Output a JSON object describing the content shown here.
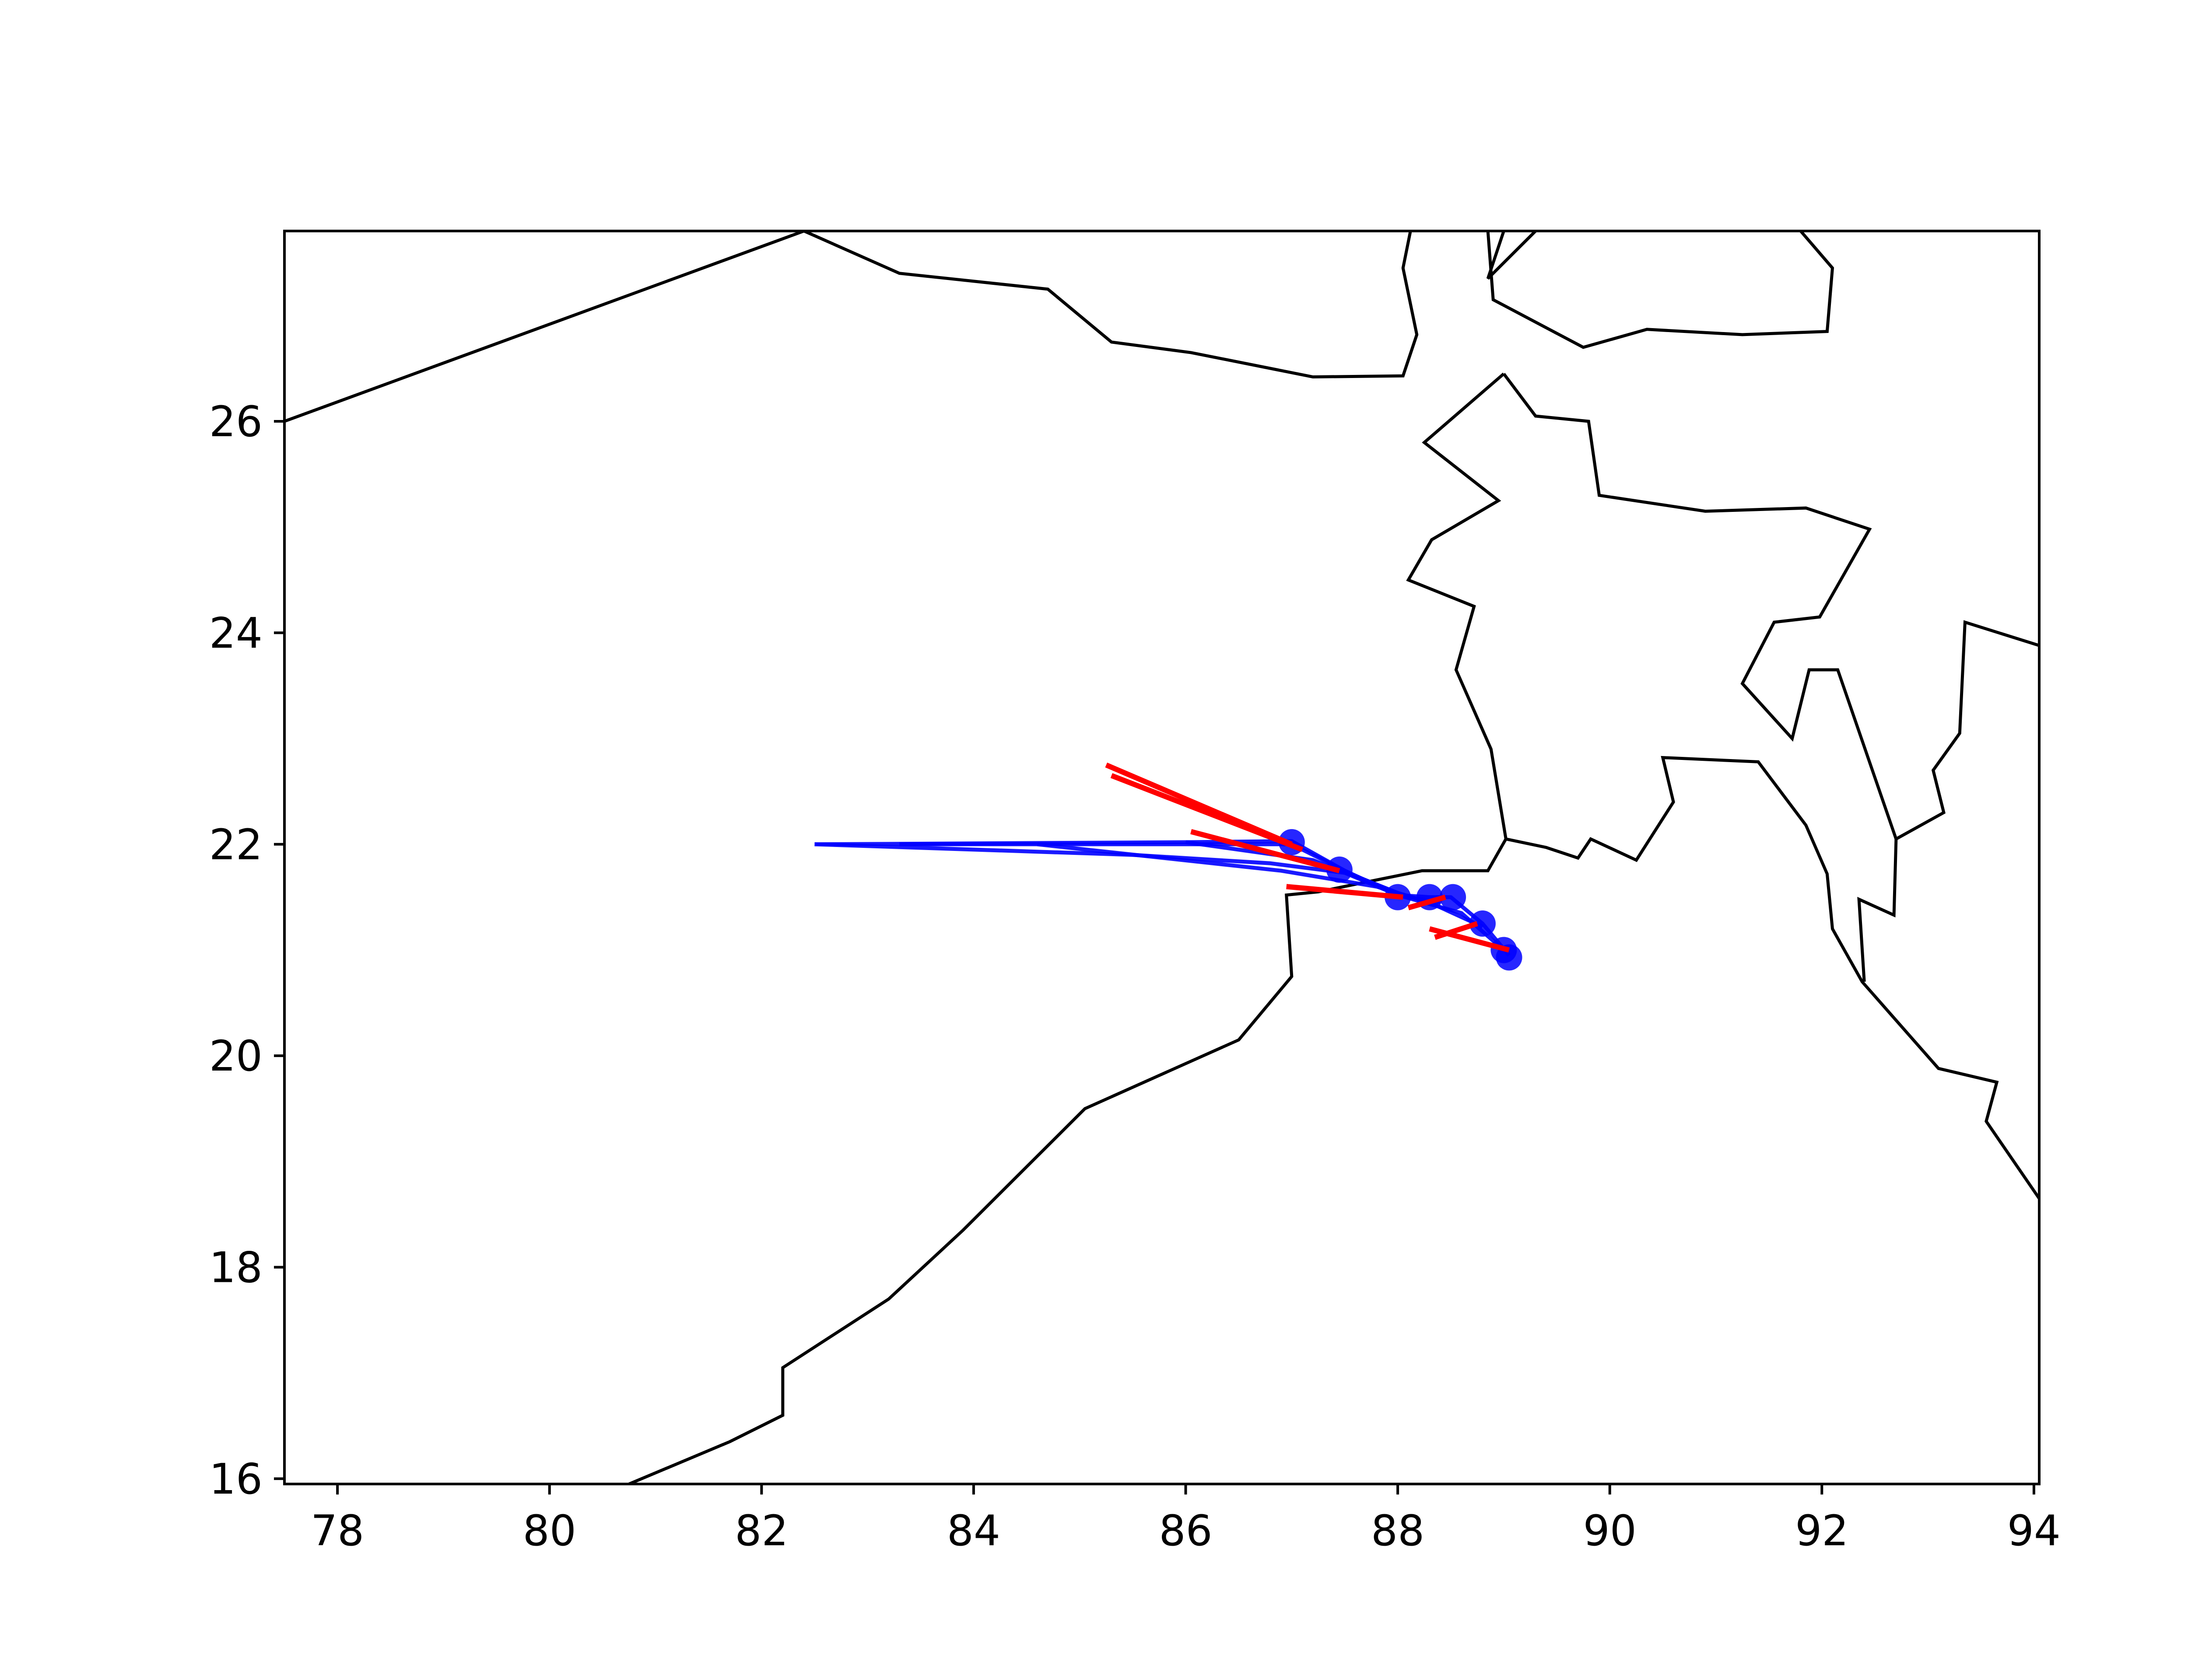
{
  "chart_data": {
    "type": "line",
    "title": "",
    "xlabel": "",
    "ylabel": "",
    "xlim": [
      77.5,
      94.05
    ],
    "ylim": [
      15.95,
      27.8
    ],
    "x_ticks": [
      "78",
      "80",
      "82",
      "84",
      "86",
      "88",
      "90",
      "92",
      "94"
    ],
    "y_ticks": [
      "16",
      "18",
      "20",
      "22",
      "24",
      "26"
    ],
    "grid": false,
    "coastline": [
      [
        [
          77.5,
          26.0
        ],
        [
          82.4,
          27.8
        ],
        [
          83.3,
          27.4
        ],
        [
          84.7,
          27.25
        ],
        [
          85.3,
          26.75
        ],
        [
          86.05,
          26.65
        ],
        [
          87.2,
          26.42
        ],
        [
          88.05,
          26.43
        ],
        [
          88.18,
          26.82
        ],
        [
          88.05,
          27.45
        ],
        [
          88.12,
          27.8
        ]
      ],
      [
        [
          89.0,
          27.8
        ],
        [
          88.85,
          27.35
        ],
        [
          89.3,
          27.8
        ]
      ],
      [
        [
          88.85,
          27.8
        ],
        [
          88.9,
          27.15
        ],
        [
          89.75,
          26.7
        ],
        [
          90.35,
          26.87
        ],
        [
          91.25,
          26.82
        ],
        [
          92.05,
          26.85
        ],
        [
          92.1,
          27.45
        ],
        [
          91.8,
          27.8
        ]
      ],
      [
        [
          89.0,
          26.45
        ],
        [
          88.25,
          25.8
        ],
        [
          88.95,
          25.25
        ],
        [
          88.32,
          24.88
        ],
        [
          88.1,
          24.5
        ],
        [
          88.72,
          24.25
        ],
        [
          88.55,
          23.65
        ],
        [
          88.88,
          22.9
        ],
        [
          89.02,
          22.05
        ],
        [
          89.4,
          21.97
        ],
        [
          89.7,
          21.87
        ],
        [
          89.82,
          22.05
        ],
        [
          90.25,
          21.85
        ],
        [
          90.6,
          22.4
        ],
        [
          90.5,
          22.82
        ],
        [
          91.4,
          22.78
        ],
        [
          91.85,
          22.18
        ],
        [
          92.05,
          21.72
        ],
        [
          92.1,
          21.2
        ],
        [
          92.38,
          20.7
        ],
        [
          93.1,
          19.88
        ],
        [
          93.65,
          19.75
        ],
        [
          93.55,
          19.38
        ],
        [
          94.05,
          18.65
        ]
      ],
      [
        [
          94.05,
          23.88
        ],
        [
          93.35,
          24.1
        ],
        [
          93.3,
          23.05
        ],
        [
          93.05,
          22.7
        ],
        [
          93.15,
          22.3
        ],
        [
          92.7,
          22.05
        ],
        [
          92.68,
          21.33
        ],
        [
          92.35,
          21.48
        ],
        [
          92.4,
          20.7
        ]
      ],
      [
        [
          92.7,
          22.05
        ],
        [
          92.15,
          23.65
        ],
        [
          91.88,
          23.65
        ],
        [
          91.72,
          23.0
        ],
        [
          91.25,
          23.52
        ],
        [
          91.55,
          24.1
        ],
        [
          91.98,
          24.15
        ],
        [
          92.45,
          24.98
        ],
        [
          91.85,
          25.18
        ],
        [
          90.9,
          25.15
        ],
        [
          89.9,
          25.3
        ],
        [
          89.8,
          26.0
        ],
        [
          89.3,
          26.05
        ],
        [
          89.0,
          26.45
        ]
      ],
      [
        [
          89.02,
          22.05
        ],
        [
          88.85,
          21.75
        ],
        [
          88.23,
          21.75
        ],
        [
          87.25,
          21.55
        ],
        [
          86.95,
          21.52
        ],
        [
          87.0,
          20.75
        ],
        [
          86.5,
          20.15
        ],
        [
          85.05,
          19.5
        ],
        [
          83.9,
          18.35
        ],
        [
          83.2,
          17.7
        ],
        [
          82.2,
          17.05
        ],
        [
          82.2,
          16.6
        ],
        [
          81.7,
          16.35
        ],
        [
          80.75,
          15.95
        ]
      ]
    ],
    "observed_tracks": [
      [
        [
          82.5,
          22.0
        ],
        [
          86.0,
          22.02
        ],
        [
          87.0,
          22.03
        ],
        [
          87.5,
          21.75
        ],
        [
          88.0,
          21.52
        ],
        [
          88.3,
          21.5
        ],
        [
          88.5,
          21.5
        ],
        [
          88.8,
          21.25
        ],
        [
          89.05,
          20.95
        ]
      ],
      [
        [
          82.5,
          22.0
        ],
        [
          85.5,
          21.9
        ],
        [
          86.8,
          21.82
        ],
        [
          87.5,
          21.73
        ],
        [
          88.0,
          21.52
        ],
        [
          88.6,
          21.35
        ],
        [
          89.0,
          21.0
        ]
      ],
      [
        [
          83.3,
          22.0
        ],
        [
          87.0,
          22.0
        ],
        [
          87.6,
          21.7
        ],
        [
          88.1,
          21.5
        ],
        [
          88.4,
          21.45
        ]
      ],
      [
        [
          84.6,
          22.0
        ],
        [
          86.9,
          21.75
        ],
        [
          87.8,
          21.6
        ],
        [
          88.3,
          21.45
        ],
        [
          88.8,
          21.22
        ]
      ],
      [
        [
          86.0,
          22.02
        ],
        [
          87.2,
          21.85
        ],
        [
          88.1,
          21.5
        ]
      ]
    ],
    "observed_points": [
      [
        87.0,
        22.02
      ],
      [
        87.45,
        21.76
      ],
      [
        88.0,
        21.5
      ],
      [
        88.3,
        21.5
      ],
      [
        88.52,
        21.5
      ],
      [
        88.8,
        21.25
      ],
      [
        89.0,
        21.0
      ],
      [
        89.05,
        20.93
      ]
    ],
    "forecast_segments": [
      [
        [
          85.25,
          22.75
        ],
        [
          87.0,
          22.0
        ]
      ],
      [
        [
          85.3,
          22.65
        ],
        [
          87.1,
          21.95
        ]
      ],
      [
        [
          86.05,
          22.12
        ],
        [
          87.45,
          21.75
        ]
      ],
      [
        [
          86.95,
          21.6
        ],
        [
          88.05,
          21.5
        ]
      ],
      [
        [
          88.1,
          21.4
        ],
        [
          88.45,
          21.5
        ]
      ],
      [
        [
          88.3,
          21.2
        ],
        [
          89.05,
          21.0
        ]
      ],
      [
        [
          88.35,
          21.12
        ],
        [
          88.75,
          21.25
        ]
      ]
    ],
    "colors": {
      "coastline": "#000000",
      "observed": "#0000ff",
      "forecast": "#ff0000",
      "axes": "#000000",
      "background": "#ffffff"
    }
  }
}
